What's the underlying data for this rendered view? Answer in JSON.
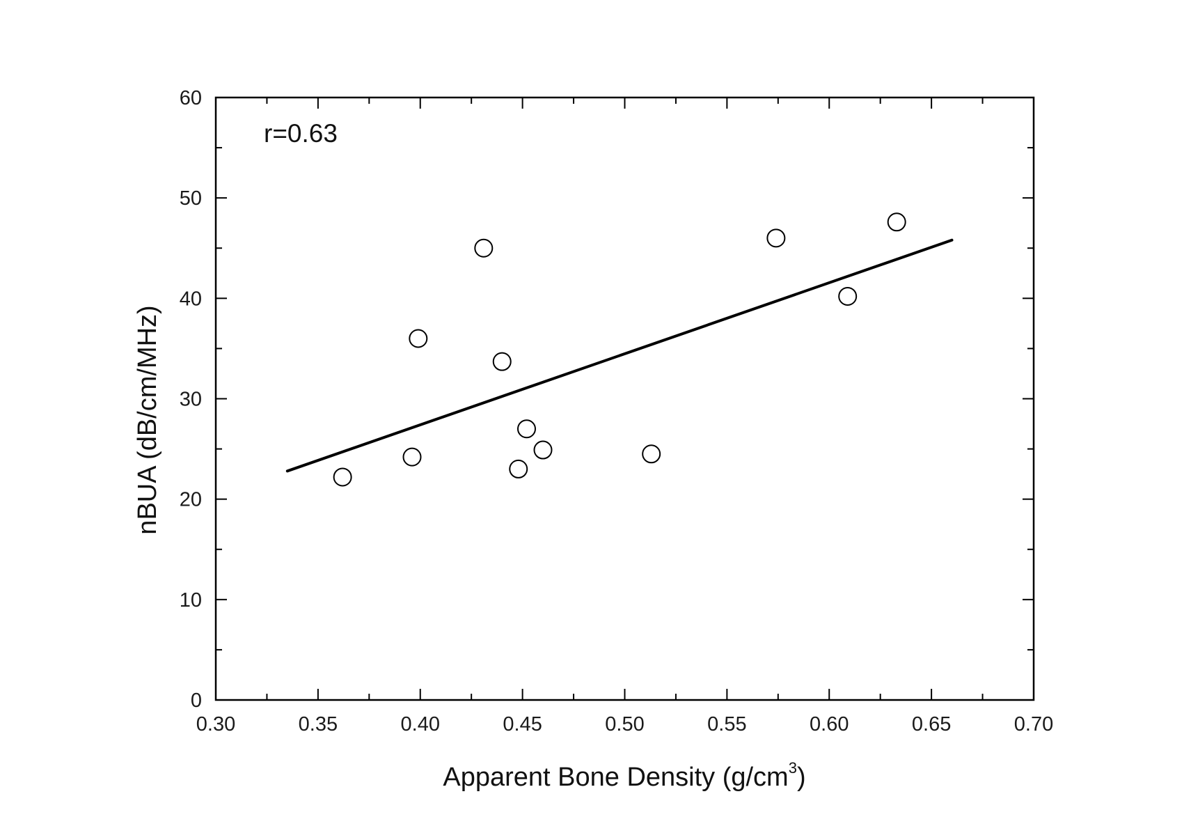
{
  "chart_data": {
    "type": "scatter",
    "title": "",
    "xlabel": "Apparent Bone Density (g/cm",
    "xlabel_sup": "3",
    "xlabel_close": ")",
    "ylabel": "nBUA (dB/cm/MHz)",
    "annotation": "r=0.63",
    "xlim": [
      0.3,
      0.7
    ],
    "ylim": [
      0,
      60
    ],
    "x_ticks": [
      "0.30",
      "0.35",
      "0.40",
      "0.45",
      "0.50",
      "0.55",
      "0.60",
      "0.65",
      "0.70"
    ],
    "y_ticks": [
      "0",
      "10",
      "20",
      "30",
      "40",
      "50",
      "60"
    ],
    "grid": false,
    "series": [
      {
        "marker": "open-circle",
        "color": "#000000",
        "points": [
          {
            "x": 0.362,
            "y": 22.2
          },
          {
            "x": 0.396,
            "y": 24.2
          },
          {
            "x": 0.399,
            "y": 36.0
          },
          {
            "x": 0.431,
            "y": 45.0
          },
          {
            "x": 0.44,
            "y": 33.7
          },
          {
            "x": 0.448,
            "y": 23.0
          },
          {
            "x": 0.452,
            "y": 27.0
          },
          {
            "x": 0.46,
            "y": 24.9
          },
          {
            "x": 0.513,
            "y": 24.5
          },
          {
            "x": 0.574,
            "y": 46.0
          },
          {
            "x": 0.609,
            "y": 40.2
          },
          {
            "x": 0.633,
            "y": 47.6
          }
        ]
      }
    ],
    "fit_line": {
      "color": "#000000",
      "x": [
        0.335,
        0.66
      ],
      "y": [
        22.8,
        45.8
      ]
    }
  }
}
